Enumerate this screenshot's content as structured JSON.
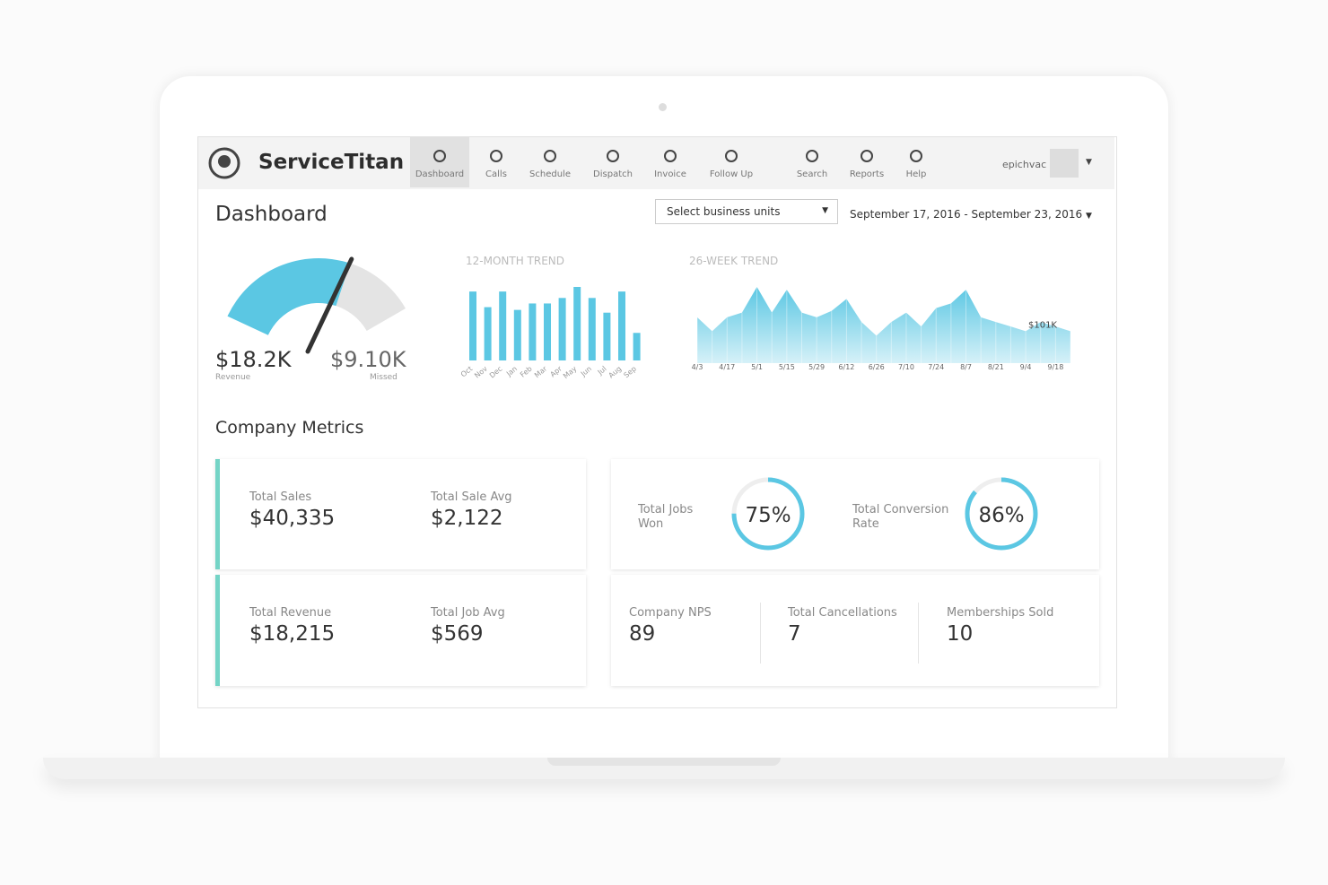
{
  "nav": {
    "brand": "ServiceTitan",
    "items": [
      "Dashboard",
      "Calls",
      "Schedule",
      "Dispatch",
      "Invoice",
      "Follow Up",
      "Search",
      "Reports",
      "Help"
    ],
    "user": "epichvac"
  },
  "header": {
    "title": "Dashboard",
    "business_units": "Select business units",
    "date_range": "September 17, 2016 - September 23, 2016"
  },
  "gauge": {
    "values": [
      18.2,
      9.1
    ],
    "value_labels": [
      "$18.2K",
      "$9.10K"
    ],
    "labels": [
      "Revenue",
      "Missed"
    ]
  },
  "trend_12": {
    "title": "12-MONTH TREND",
    "categories": [
      "Oct",
      "Nov",
      "Dec",
      "Jan",
      "Feb",
      "Mar",
      "Apr",
      "May",
      "Jun",
      "Jul",
      "Aug",
      "Sep"
    ],
    "values": [
      75,
      58,
      75,
      55,
      62,
      62,
      68,
      80,
      68,
      52,
      75,
      30
    ]
  },
  "trend_26": {
    "title": "26-WEEK TREND",
    "categories": [
      "4/3",
      null,
      "4/17",
      null,
      "5/1",
      null,
      "5/15",
      null,
      "5/29",
      null,
      "6/12",
      null,
      "6/26",
      null,
      "7/10",
      null,
      "7/24",
      null,
      "8/7",
      null,
      "8/21",
      null,
      "9/4",
      null,
      "9/18",
      null
    ],
    "values": [
      145,
      101,
      145,
      160,
      241,
      160,
      232,
      160,
      145,
      165,
      203,
      130,
      87,
      130,
      160,
      116,
      174,
      189,
      232,
      145,
      130,
      116,
      101,
      130,
      116,
      101
    ],
    "annotation": "$101K"
  },
  "metrics": {
    "title": "Company Metrics",
    "cards": [
      {
        "label": "Total Sales",
        "value": "$40,335"
      },
      {
        "label": "Total Sale Avg",
        "value": "$2,122"
      },
      {
        "label": "Total Revenue",
        "value": "$18,215"
      },
      {
        "label": "Total Job Avg",
        "value": "$569"
      }
    ],
    "rings": [
      {
        "label": "Total Jobs Won",
        "value": 75,
        "value_label": "75%"
      },
      {
        "label": "Total Conversion Rate",
        "value": 86,
        "value_label": "86%"
      }
    ],
    "counts": [
      {
        "label": "Company NPS",
        "value": 89
      },
      {
        "label": "Total Cancellations",
        "value": 7
      },
      {
        "label": "Memberships Sold",
        "value": 10
      }
    ]
  }
}
